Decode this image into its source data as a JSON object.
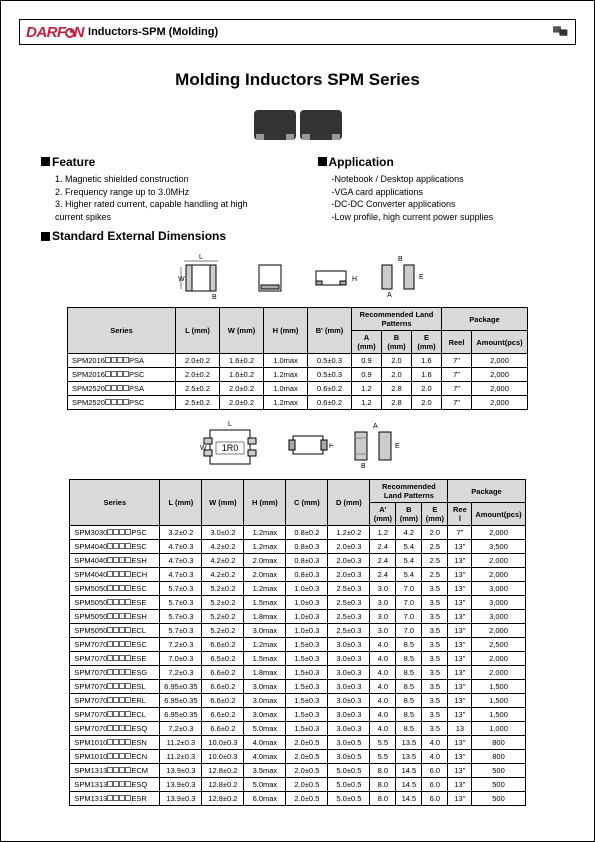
{
  "header": {
    "brand_prefix": "DARF",
    "brand_suffix": "N",
    "subtitle": "Inductors-SPM (Molding)",
    "brand_color": "#c41e3a"
  },
  "title": "Molding Inductors SPM Series",
  "feature": {
    "heading": "Feature",
    "items": [
      "1. Magnetic shielded construction",
      "2. Frequency range up to 3.0MHz",
      "3. Higher rated current, capable handling at high current spikes"
    ]
  },
  "application": {
    "heading": "Application",
    "items": [
      "-Notebook / Desktop applications",
      "-VGA card applications",
      "-DC-DC Converter applications",
      "-Low profile, high current power supplies"
    ]
  },
  "std_dim_heading": "Standard External Dimensions",
  "diagram_label": "1R0",
  "table1": {
    "headers": {
      "series": "Series",
      "L": "L (mm)",
      "W": "W (mm)",
      "H": "H (mm)",
      "B": "B' (mm)",
      "land": "Recommended Land Patterns",
      "A": "A (mm)",
      "Bc": "B (mm)",
      "E": "E (mm)",
      "pkg": "Package",
      "reel": "Reel",
      "amt": "Amount(pcs)"
    },
    "rows": [
      {
        "s": "SPM2016",
        "sx": "PSA",
        "L": "2.0±0.2",
        "W": "1.6±0.2",
        "H": "1.0max",
        "B": "0.5±0.3",
        "A": "0.9",
        "Bc": "2.0",
        "E": "1.6",
        "R": "7\"",
        "Am": "2,000"
      },
      {
        "s": "SPM2016",
        "sx": "PSC",
        "L": "2.0±0.2",
        "W": "1.6±0.2",
        "H": "1.2max",
        "B": "0.5±0.3",
        "A": "0.9",
        "Bc": "2.0",
        "E": "1.6",
        "R": "7\"",
        "Am": "2,000"
      },
      {
        "s": "SPM2520",
        "sx": "PSA",
        "L": "2.5±0.2",
        "W": "2.0±0.2",
        "H": "1.0max",
        "B": "0.6±0.2",
        "A": "1.2",
        "Bc": "2.8",
        "E": "2.0",
        "R": "7\"",
        "Am": "2,000"
      },
      {
        "s": "SPM2520",
        "sx": "PSC",
        "L": "2.5±0.2",
        "W": "2.0±0.2",
        "H": "1.2max",
        "B": "0.6±0.2",
        "A": "1.2",
        "Bc": "2.8",
        "E": "2.0",
        "R": "7\"",
        "Am": "2,000"
      }
    ]
  },
  "table2": {
    "headers": {
      "series": "Series",
      "L": "L (mm)",
      "W": "W (mm)",
      "H": "H (mm)",
      "C": "C (mm)",
      "D": "D (mm)",
      "land": "Recommended Land Patterns",
      "A": "A' (mm)",
      "B": "B (mm)",
      "E": "E (mm)",
      "pkg": "Package",
      "reel": "Ree l",
      "amt": "Amount(pcs)"
    },
    "rows": [
      {
        "s": "SPM3030",
        "sx": "PSC",
        "L": "3.2±0.2",
        "W": "3.0±0.2",
        "H": "1.2max",
        "C": "0.8±0.2",
        "D": "1.2±0.2",
        "A": "1.2",
        "B": "4.2",
        "E": "2.0",
        "R": "7\"",
        "Am": "2,000"
      },
      {
        "s": "SPM4040",
        "sx": "ESC",
        "L": "4.7±0.3",
        "W": "4.2±0.2",
        "H": "1.2max",
        "C": "0.8±0.3",
        "D": "2.0±0.3",
        "A": "2.4",
        "B": "5.4",
        "E": "2.5",
        "R": "13\"",
        "Am": "3,500"
      },
      {
        "s": "SPM4040",
        "sx": "ESH",
        "L": "4.7±0.3",
        "W": "4.2±0.2",
        "H": "2.0max",
        "C": "0.8±0.3",
        "D": "2.0±0.3",
        "A": "2.4",
        "B": "5.4",
        "E": "2.5",
        "R": "13\"",
        "Am": "2,000"
      },
      {
        "s": "SPM4040",
        "sx": "ECH",
        "L": "4.7±0.3",
        "W": "4.2±0.2",
        "H": "2.0max",
        "C": "0.8±0.3",
        "D": "2.0±0.3",
        "A": "2.4",
        "B": "5.4",
        "E": "2.5",
        "R": "13\"",
        "Am": "2,000"
      },
      {
        "s": "SPM5050",
        "sx": "ESC",
        "L": "5.7±0.3",
        "W": "5.2±0.2",
        "H": "1.2max",
        "C": "1.0±0.3",
        "D": "2.5±0.3",
        "A": "3.0",
        "B": "7.0",
        "E": "3.5",
        "R": "13\"",
        "Am": "3,000"
      },
      {
        "s": "SPM5050",
        "sx": "ESE",
        "L": "5.7±0.3",
        "W": "5.2±0.2",
        "H": "1.5max",
        "C": "1.0±0.3",
        "D": "2.5±0.3",
        "A": "3.0",
        "B": "7.0",
        "E": "3.5",
        "R": "13\"",
        "Am": "3,000"
      },
      {
        "s": "SPM5050",
        "sx": "ESH",
        "L": "5.7±0.3",
        "W": "5.2±0.2",
        "H": "1.8max",
        "C": "1.0±0.3",
        "D": "2.5±0.3",
        "A": "3.0",
        "B": "7.0",
        "E": "3.5",
        "R": "13\"",
        "Am": "3,000"
      },
      {
        "s": "SPM5050",
        "sx": "ECL",
        "L": "5.7±0.3",
        "W": "5.2±0.2",
        "H": "3.0max",
        "C": "1.0±0.3",
        "D": "2.5±0.3",
        "A": "3.0",
        "B": "7.0",
        "E": "3.5",
        "R": "13\"",
        "Am": "2,000"
      },
      {
        "s": "SPM7070",
        "sx": "ESC",
        "L": "7.2±0.3",
        "W": "6.6±0.2",
        "H": "1.2max",
        "C": "1.5±0.3",
        "D": "3.0±0.3",
        "A": "4.0",
        "B": "8.5",
        "E": "3.5",
        "R": "13\"",
        "Am": "2,500"
      },
      {
        "s": "SPM7070",
        "sx": "ESE",
        "L": "7.0±0.3",
        "W": "6.5±0.2",
        "H": "1.5max",
        "C": "1.5±0.3",
        "D": "3.0±0.3",
        "A": "4.0",
        "B": "8.5",
        "E": "3.5",
        "R": "13\"",
        "Am": "2,000"
      },
      {
        "s": "SPM7070",
        "sx": "ESG",
        "L": "7.2±0.3",
        "W": "6.6±0.2",
        "H": "1.8max",
        "C": "1.5±0.3",
        "D": "3.0±0.3",
        "A": "4.0",
        "B": "8.5",
        "E": "3.5",
        "R": "13\"",
        "Am": "2,000"
      },
      {
        "s": "SPM7070",
        "sx": "ESL",
        "L": "6.95±0.35",
        "W": "6.6±0.2",
        "H": "3.0max",
        "C": "1.5±0.3",
        "D": "3.0±0.3",
        "A": "4.0",
        "B": "8.5",
        "E": "3.5",
        "R": "13\"",
        "Am": "1,500"
      },
      {
        "s": "SPM7070",
        "sx": "ERL",
        "L": "6.95±0.35",
        "W": "6.6±0.2",
        "H": "3.0max",
        "C": "1.5±0.3",
        "D": "3.0±0.3",
        "A": "4.0",
        "B": "8.5",
        "E": "3.5",
        "R": "13\"",
        "Am": "1,500"
      },
      {
        "s": "SPM7070",
        "sx": "ECL",
        "L": "6.95±0.35",
        "W": "6.6±0.2",
        "H": "3.0max",
        "C": "1.5±0.3",
        "D": "3.0±0.3",
        "A": "4.0",
        "B": "8.5",
        "E": "3.5",
        "R": "13\"",
        "Am": "1,500"
      },
      {
        "s": "SPM7070",
        "sx": "ESQ",
        "L": "7.2±0.3",
        "W": "6.6±0.2",
        "H": "5.0max",
        "C": "1.5±0.3",
        "D": "3.0±0.3",
        "A": "4.0",
        "B": "8.5",
        "E": "3.5",
        "R": "13",
        "Am": "1,000"
      },
      {
        "s": "SPM1010",
        "sx": "ESN",
        "L": "11.2±0.3",
        "W": "10.0±0.3",
        "H": "4.0max",
        "C": "2.0±0.5",
        "D": "3.0±0.5",
        "A": "5.5",
        "B": "13.5",
        "E": "4.0",
        "R": "13\"",
        "Am": "800"
      },
      {
        "s": "SPM1010",
        "sx": "ECN",
        "L": "11.2±0.3",
        "W": "10.0±0.3",
        "H": "4.0max",
        "C": "2.0±0.5",
        "D": "3.0±0.5",
        "A": "5.5",
        "B": "13.5",
        "E": "4.0",
        "R": "13\"",
        "Am": "800"
      },
      {
        "s": "SPM1313",
        "sx": "ECM",
        "L": "13.9±0.3",
        "W": "12.8±0.2",
        "H": "3.5max",
        "C": "2.0±0.5",
        "D": "5.0±0.5",
        "A": "8.0",
        "B": "14.5",
        "E": "6.0",
        "R": "13\"",
        "Am": "500"
      },
      {
        "s": "SPM1313",
        "sx": "ESQ",
        "L": "13.9±0.3",
        "W": "12.8±0.2",
        "H": "5.0max",
        "C": "2.0±0.5",
        "D": "5.0±0.5",
        "A": "8.0",
        "B": "14.5",
        "E": "6.0",
        "R": "13\"",
        "Am": "500"
      },
      {
        "s": "SPM1313",
        "sx": "ESR",
        "L": "13.9±0.3",
        "W": "12.8±0.2",
        "H": "6.0max",
        "C": "2.0±0.5",
        "D": "5.0±0.5",
        "A": "8.0",
        "B": "14.5",
        "E": "6.0",
        "R": "13\"",
        "Am": "500"
      }
    ]
  }
}
